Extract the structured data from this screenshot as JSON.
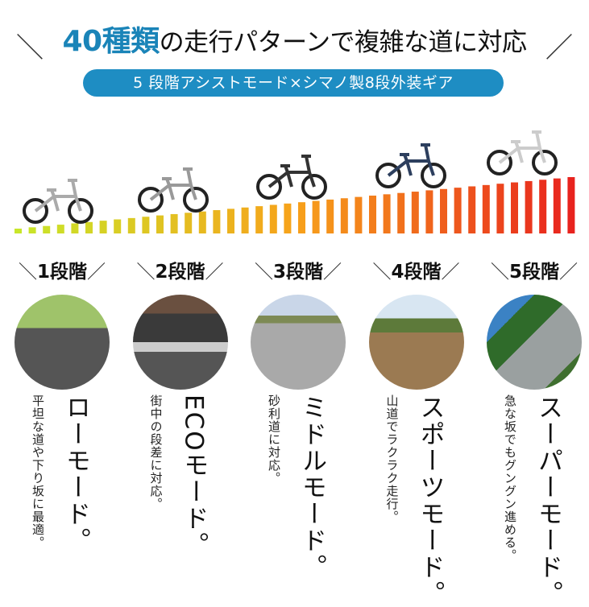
{
  "header": {
    "title_highlight": "40種類",
    "title_rest": "の走行パターンで複雑な道に対応",
    "slash_left": "＼",
    "slash_right": "／",
    "subtitle": "5 段階アシストモード×シマノ製8段外装ギア"
  },
  "colors": {
    "accent": "#1a84b8",
    "pill": "#1e8dc3",
    "bar_start": "#c8e62a",
    "bar_mid": "#f7a21b",
    "bar_end": "#e8231e"
  },
  "levels": [
    {
      "label": "1段階",
      "mode": "ローモード。",
      "desc": "平坦な道や下り坂に最適。",
      "scene": "paved-road"
    },
    {
      "label": "2段階",
      "mode": "ECOモード。",
      "desc": "街中の段差に対応。",
      "scene": "city-curb"
    },
    {
      "label": "3段階",
      "mode": "ミドルモード。",
      "desc": "砂利道に対応。",
      "scene": "gravel-road"
    },
    {
      "label": "4段階",
      "mode": "スポーツモード。",
      "desc": "山道でラクラク走行。",
      "scene": "dirt-mountain-road"
    },
    {
      "label": "5段階",
      "mode": "スーパーモード。",
      "desc": "急な坂でもグングン進める。",
      "scene": "steep-slope"
    }
  ],
  "slash_open": "＼",
  "slash_close": "／"
}
